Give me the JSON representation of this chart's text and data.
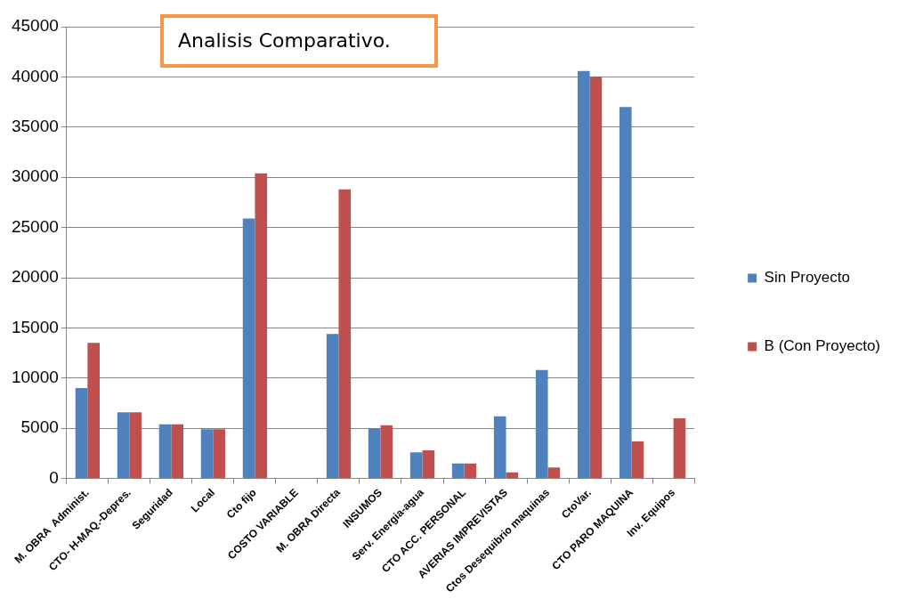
{
  "chart_data": {
    "type": "bar",
    "title": "Analisis Comparativo.",
    "categories": [
      "M. OBRA  Administ.",
      "CTO- H-MAQ.-Depres.",
      "Seguridad",
      "Local",
      "Cto fijo",
      "COSTO VARIABLE",
      "M. OBRA Directa",
      "INSUMOS",
      "Serv. Energia-agua",
      "CTO ACC. PERSONAL",
      "AVERIAS IMPREVISTAS",
      "Ctos Desequibrio maquinas",
      "CtoVar.",
      "CTO PARO MAQUINA",
      "Inv. Equipos"
    ],
    "series": [
      {
        "name": "Sin Proyecto",
        "color": "#4f81bd",
        "values": [
          9000,
          6600,
          5400,
          4900,
          25900,
          null,
          14400,
          5000,
          2600,
          1500,
          6200,
          10800,
          40600,
          37000,
          null
        ]
      },
      {
        "name": "B (Con Proyecto)",
        "color": "#c0504d",
        "values": [
          13500,
          6600,
          5400,
          4900,
          30400,
          null,
          28800,
          5300,
          2800,
          1500,
          600,
          1100,
          40000,
          3700,
          6000
        ]
      }
    ],
    "ylim": [
      0,
      45000
    ],
    "yticks": [
      0,
      5000,
      10000,
      15000,
      20000,
      25000,
      30000,
      35000,
      40000,
      45000
    ],
    "grid": "y",
    "legend": "right"
  }
}
